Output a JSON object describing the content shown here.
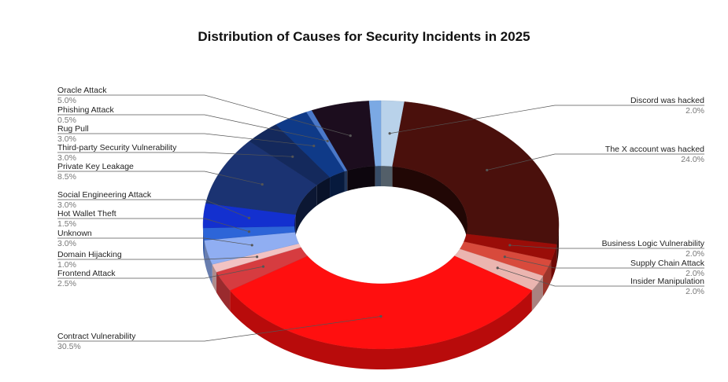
{
  "chart_data": {
    "type": "pie",
    "variant": "3d-donut",
    "title": "Distribution of Causes for Security Incidents in 2025",
    "slices": [
      {
        "name": "Discord was hacked",
        "value": 2.0,
        "label": "2.0%",
        "color": "#b9d2ea",
        "side": "right"
      },
      {
        "name": "The X account was hacked",
        "value": 24.0,
        "label": "24.0%",
        "color": "#4a100c",
        "side": "right"
      },
      {
        "name": "Business Logic Vulnerability",
        "value": 2.0,
        "label": "2.0%",
        "color": "#9a0d08",
        "side": "right"
      },
      {
        "name": "Supply Chain Attack",
        "value": 2.0,
        "label": "2.0%",
        "color": "#d84a3c",
        "side": "right"
      },
      {
        "name": "Insider Manipulation",
        "value": 2.0,
        "label": "2.0%",
        "color": "#ebb5b0",
        "side": "right"
      },
      {
        "name": "Contract Vulnerability",
        "value": 30.5,
        "label": "30.5%",
        "color": "#ff0f0f",
        "side": "left"
      },
      {
        "name": "Frontend Attack",
        "value": 2.5,
        "label": "2.5%",
        "color": "#d63c40",
        "side": "left"
      },
      {
        "name": "Domain Hijacking",
        "value": 1.0,
        "label": "1.0%",
        "color": "#f2c3c3",
        "side": "left"
      },
      {
        "name": "Unknown",
        "value": 3.0,
        "label": "3.0%",
        "color": "#90aef2",
        "side": "left"
      },
      {
        "name": "Hot Wallet Theft",
        "value": 1.5,
        "label": "1.5%",
        "color": "#2d65d8",
        "side": "left"
      },
      {
        "name": "Social Engineering Attack",
        "value": 3.0,
        "label": "3.0%",
        "color": "#1330cf",
        "side": "left"
      },
      {
        "name": "Private Key Leakage",
        "value": 8.5,
        "label": "8.5%",
        "color": "#1b3372",
        "side": "left"
      },
      {
        "name": "Third-party Security Vulnerability",
        "value": 3.0,
        "label": "3.0%",
        "color": "#14295c",
        "side": "left"
      },
      {
        "name": "Rug Pull",
        "value": 3.0,
        "label": "3.0%",
        "color": "#0f3a88",
        "side": "left"
      },
      {
        "name": "Phishing Attack",
        "value": 0.5,
        "label": "0.5%",
        "color": "#4a78c9",
        "side": "left"
      },
      {
        "name": "Oracle Attack",
        "value": 5.0,
        "label": "5.0%",
        "color": "#1c0d1e",
        "side": "left"
      },
      {
        "name": "",
        "value": 1.0,
        "label": "",
        "color": "#7ba9e4",
        "side": "none"
      }
    ]
  }
}
